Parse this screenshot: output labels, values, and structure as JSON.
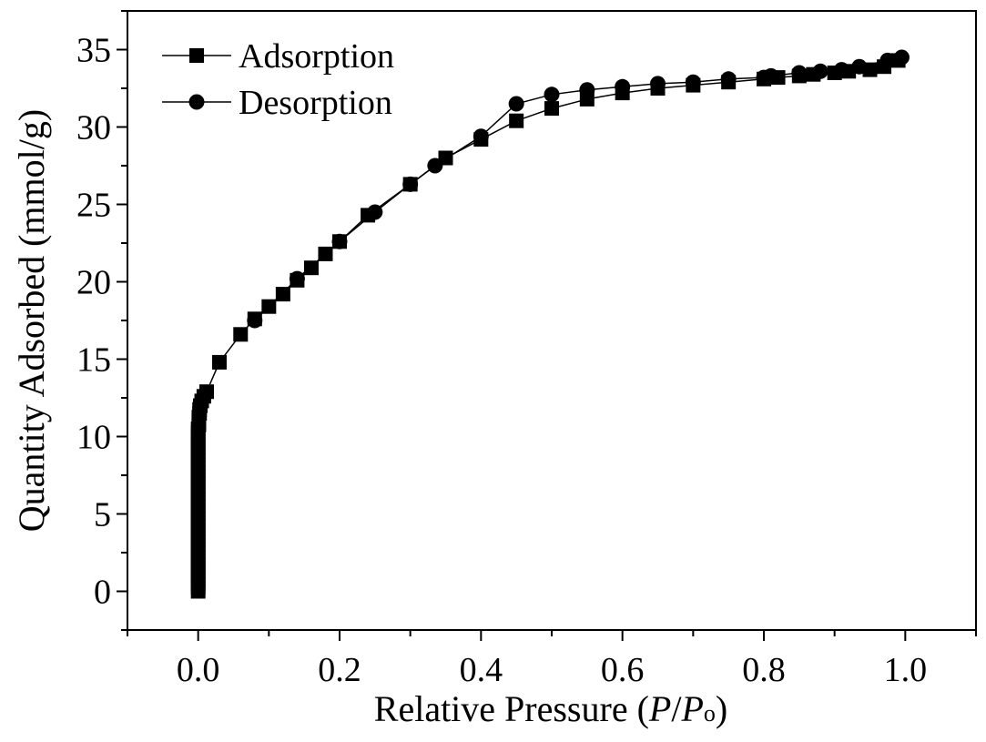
{
  "chart_data": {
    "type": "line",
    "xlabel": "Relative Pressure (P/Po)",
    "xlabel_parts": [
      "Relative Pressure (",
      "P",
      "/",
      "P",
      "o",
      ")"
    ],
    "ylabel": "Quantity Adsorbed (mmol/g)",
    "xlim": [
      -0.1,
      1.1
    ],
    "ylim": [
      -2.5,
      37.5
    ],
    "x_ticks": [
      0.0,
      0.2,
      0.4,
      0.6,
      0.8,
      1.0
    ],
    "x_tick_labels": [
      "0.0",
      "0.2",
      "0.4",
      "0.6",
      "0.8",
      "1.0"
    ],
    "y_ticks": [
      0,
      5,
      10,
      15,
      20,
      25,
      30,
      35
    ],
    "y_tick_labels": [
      "0",
      "5",
      "10",
      "15",
      "20",
      "25",
      "30",
      "35"
    ],
    "grid": false,
    "legend_position": "top-left",
    "series": [
      {
        "name": "Adsorption",
        "marker": "square",
        "color": "#000000",
        "x": [
          0.0,
          0.0,
          0.0,
          0.0,
          0.0,
          0.0,
          0.0,
          0.0,
          0.0,
          0.0,
          0.0,
          0.0,
          0.0,
          0.0,
          0.0,
          0.0,
          0.0,
          0.0,
          0.0,
          0.0,
          0.0,
          0.0,
          0.0,
          0.0,
          0.0,
          0.0,
          0.0,
          0.0,
          0.0,
          0.0,
          0.0,
          0.0,
          0.0,
          0.0,
          0.0,
          0.0,
          0.0,
          0.0,
          0.0,
          0.0,
          0.0,
          0.0,
          0.0,
          0.001,
          0.001,
          0.001,
          0.002,
          0.002,
          0.003,
          0.005,
          0.008,
          0.012,
          0.03,
          0.06,
          0.08,
          0.1,
          0.12,
          0.14,
          0.16,
          0.18,
          0.2,
          0.24,
          0.3,
          0.35,
          0.4,
          0.45,
          0.5,
          0.55,
          0.6,
          0.65,
          0.7,
          0.75,
          0.8,
          0.82,
          0.85,
          0.87,
          0.9,
          0.92,
          0.95,
          0.97,
          0.99
        ],
        "y": [
          0.0,
          0.25,
          0.5,
          0.75,
          1.0,
          1.25,
          1.5,
          1.75,
          2.0,
          2.25,
          2.5,
          2.75,
          3.0,
          3.25,
          3.5,
          3.75,
          4.0,
          4.25,
          4.5,
          4.75,
          5.0,
          5.25,
          5.5,
          5.75,
          6.0,
          6.25,
          6.5,
          6.75,
          7.0,
          7.25,
          7.5,
          7.75,
          8.0,
          8.25,
          8.5,
          8.75,
          9.0,
          9.25,
          9.5,
          9.75,
          10.0,
          10.25,
          10.5,
          10.75,
          11.0,
          11.25,
          11.5,
          11.75,
          12.0,
          12.3,
          12.6,
          12.9,
          14.8,
          16.6,
          17.6,
          18.4,
          19.2,
          20.1,
          20.9,
          21.8,
          22.6,
          24.3,
          26.3,
          28.0,
          29.2,
          30.4,
          31.2,
          31.8,
          32.2,
          32.5,
          32.7,
          32.9,
          33.1,
          33.2,
          33.3,
          33.4,
          33.5,
          33.6,
          33.7,
          33.9,
          34.3
        ]
      },
      {
        "name": "Desorption",
        "marker": "circle",
        "color": "#000000",
        "x": [
          0.995,
          0.975,
          0.935,
          0.91,
          0.88,
          0.85,
          0.81,
          0.8,
          0.75,
          0.7,
          0.65,
          0.6,
          0.55,
          0.5,
          0.45,
          0.4,
          0.335,
          0.3,
          0.25,
          0.2,
          0.14,
          0.08
        ],
        "y": [
          34.5,
          34.3,
          33.9,
          33.7,
          33.6,
          33.5,
          33.3,
          33.2,
          33.1,
          32.9,
          32.8,
          32.6,
          32.4,
          32.1,
          31.5,
          29.4,
          27.5,
          26.3,
          24.5,
          22.6,
          20.2,
          17.5
        ]
      }
    ]
  }
}
